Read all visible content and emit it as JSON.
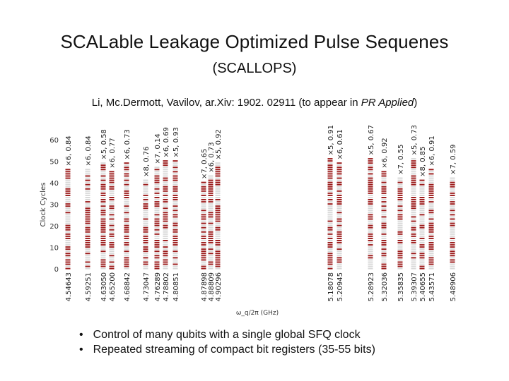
{
  "slide": {
    "title": "SCALable Leakage Optimized Pulse Sequenes",
    "subtitle": "(SCALLOPS)",
    "citation_prefix": "Li, Mc.Dermott, Vavilov, ar.Xiv: 1902. 02911 (to appear in ",
    "citation_journal": "PR Applied",
    "citation_suffix": ")",
    "bullets": [
      "Control of many qubits with a single global SFQ clock",
      "Repeated streaming of compact bit registers (35-55 bits)"
    ]
  },
  "chart_data": {
    "type": "heatmap",
    "ylabel": "Clock Cycles",
    "xlabel": "ω_q/2π (GHz)",
    "yticks": [
      0,
      10,
      20,
      30,
      40,
      50,
      60
    ],
    "ylim": [
      0,
      62
    ],
    "colors": {
      "pulse": "#9b1b1b",
      "idle": "#d8d8d8"
    },
    "columns": [
      {
        "freq": "4.54643",
        "label": "×6, 0.84",
        "length": 47
      },
      {
        "freq": "4.59251",
        "label": "×6, 0.84",
        "length": 47
      },
      {
        "freq": "4.63050",
        "label": "×5, 0.58",
        "length": 50
      },
      {
        "freq": "4.65200",
        "label": "×6, 0.77",
        "length": 46
      },
      {
        "freq": "4.68842",
        "label": "×6, 0.73",
        "length": 50
      },
      {
        "freq": "4.73047",
        "label": "×8, 0.76",
        "length": 42
      },
      {
        "freq": "4.76289",
        "label": "×7, 0.14",
        "length": 48
      },
      {
        "freq": "4.78802",
        "label": "×6, 0.69",
        "length": 51
      },
      {
        "freq": "4.80851",
        "label": "×5, 0.93",
        "length": 51
      },
      {
        "freq": "4.87898",
        "label": "×7, 0.65",
        "length": 41
      },
      {
        "freq": "4.88809",
        "label": "×6, 0.73",
        "length": 44
      },
      {
        "freq": "4.90296",
        "label": "×5, 0.92",
        "length": 50
      },
      {
        "freq": "5.18078",
        "label": "×5, 0.91",
        "length": 52
      },
      {
        "freq": "5.20945",
        "label": "×6, 0.61",
        "length": 50
      },
      {
        "freq": "5.28923",
        "label": "×5, 0.67",
        "length": 52
      },
      {
        "freq": "5.32036",
        "label": "×6, 0.92",
        "length": 46
      },
      {
        "freq": "5.35835",
        "label": "×7, 0.55",
        "length": 43
      },
      {
        "freq": "5.39307",
        "label": "×5, 0.73",
        "length": 52
      },
      {
        "freq": "5.40655",
        "label": "×8, 0.85",
        "length": 42
      },
      {
        "freq": "5.43571",
        "label": "×6, 0.91",
        "length": 47
      },
      {
        "freq": "5.48906",
        "label": "×7, 0.59",
        "length": 43
      }
    ]
  }
}
